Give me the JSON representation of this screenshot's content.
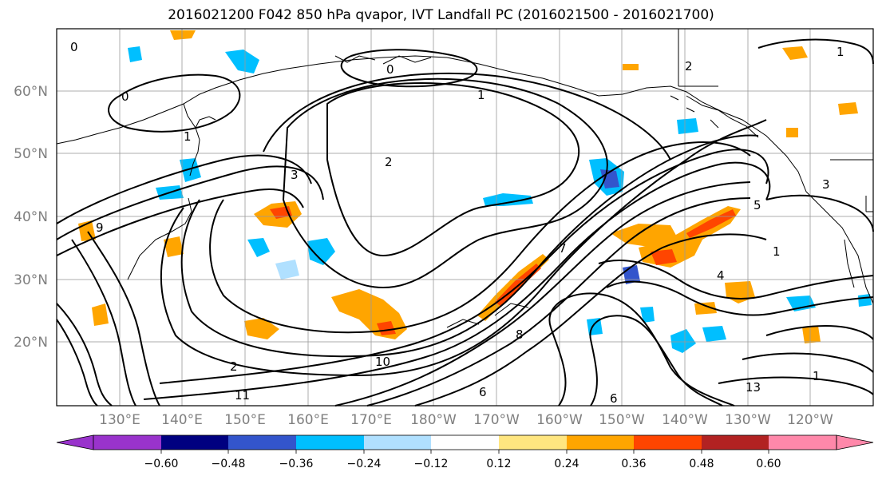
{
  "title": "2016021200 F042 850 hPa qvapor, IVT Landfall PC (2016021500 - 2016021700)",
  "lat_labels": [
    "60°N",
    "50°N",
    "40°N",
    "30°N",
    "20°N"
  ],
  "lon_labels": [
    "130°E",
    "140°E",
    "150°E",
    "160°E",
    "170°E",
    "180°W",
    "170°W",
    "160°W",
    "150°W",
    "140°W",
    "130°W",
    "120°W"
  ],
  "colorbar": {
    "colors": [
      "#9933cc",
      "#000080",
      "#3355cc",
      "#00bfff",
      "#b0e0ff",
      "#ffffff",
      "#ffe680",
      "#ffa500",
      "#ff4500",
      "#b22222",
      "#ff88aa"
    ],
    "ticks": [
      "−0.60",
      "−0.48",
      "−0.36",
      "−0.24",
      "−0.12",
      "0.12",
      "0.24",
      "0.36",
      "0.48",
      "0.60"
    ]
  },
  "contour_labels": [
    "0",
    "0",
    "0",
    "1",
    "1",
    "1",
    "2",
    "2",
    "2",
    "3",
    "3",
    "4",
    "5",
    "6",
    "7",
    "8",
    "9",
    "10",
    "11",
    "13",
    "1",
    "1",
    "6"
  ],
  "map": {
    "projection": "lat-lon",
    "lat_range": [
      10,
      70
    ],
    "lon_range": [
      120,
      250
    ],
    "gridlines": true,
    "field_colors": {
      "negative": "#00bfff",
      "positive": "#ffa500",
      "strong_positive": "#ff4500",
      "strong_negative": "#3355cc"
    }
  }
}
